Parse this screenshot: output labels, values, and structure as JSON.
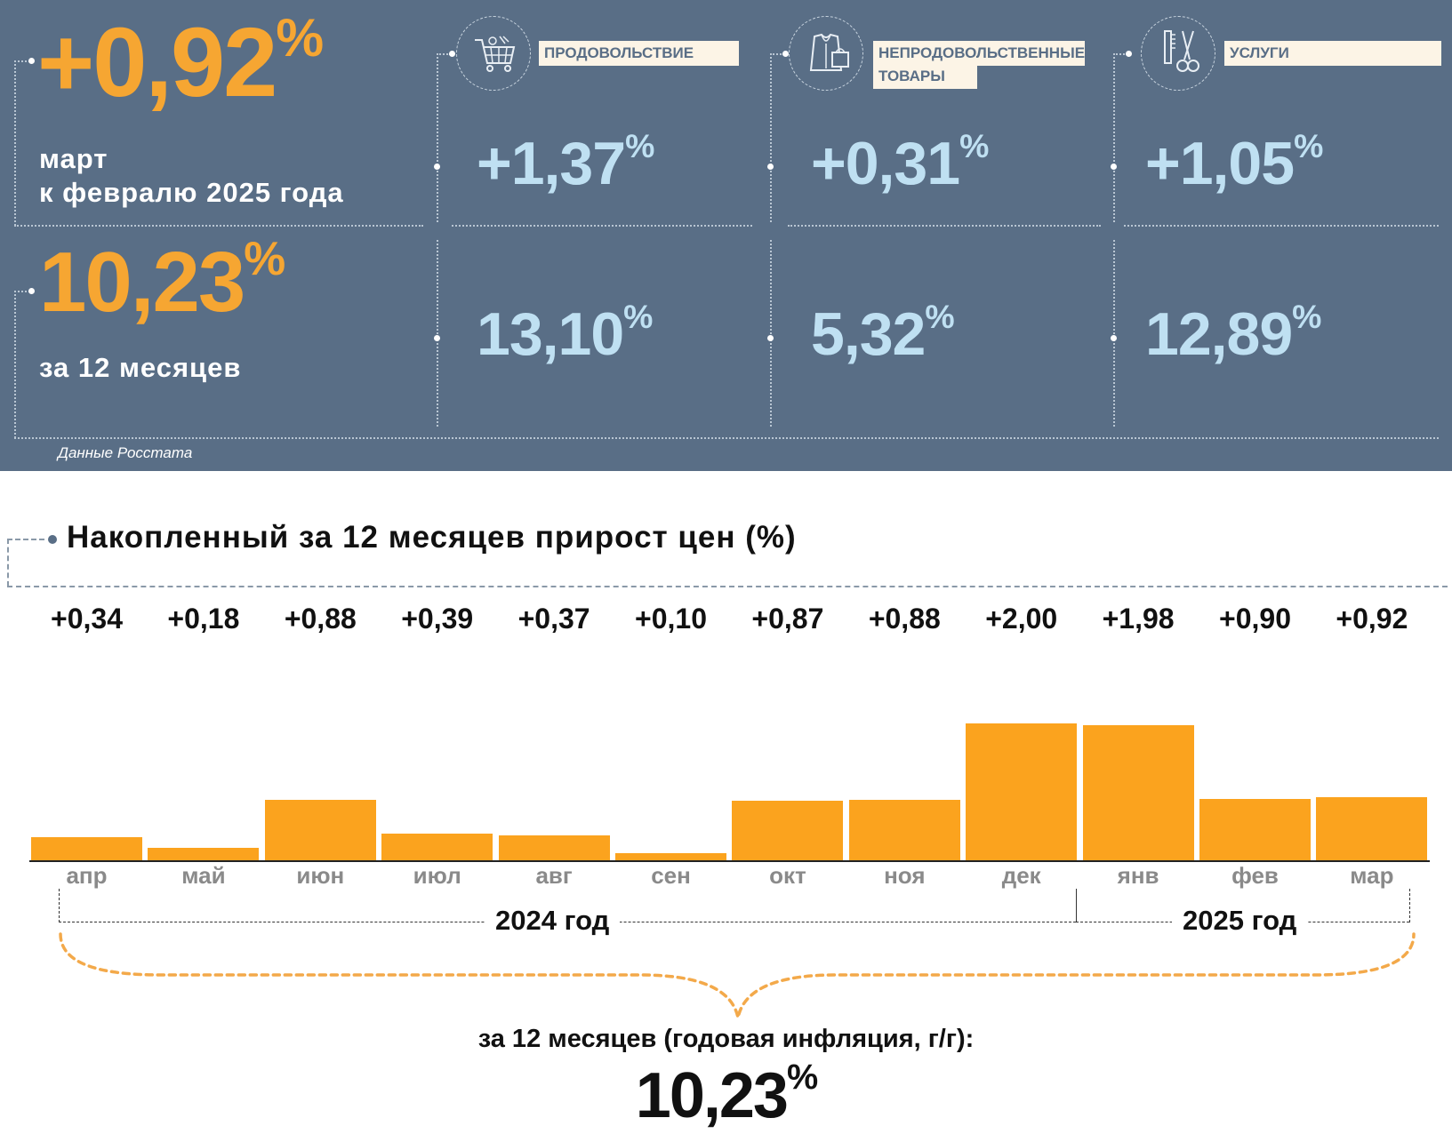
{
  "summary": {
    "monthly": {
      "value": "+0,92",
      "unit": "%",
      "label_line1": "март",
      "label_line2": "к февралю 2025 года"
    },
    "annual": {
      "value": "10,23",
      "unit": "%",
      "label": "за 12 месяцев"
    },
    "source": "Данные Росстата"
  },
  "categories": [
    {
      "name": "ПРОДОВОЛЬСТВИЕ",
      "icon": "shopping-cart-icon",
      "monthly": "+1,37",
      "annual": "13,10",
      "unit": "%"
    },
    {
      "name_line1": "НЕПРОДОВОЛЬСТВЕННЫЕ",
      "name_line2": "ТОВАРЫ",
      "icon": "clothing-bag-icon",
      "monthly": "+0,31",
      "annual": "5,32",
      "unit": "%"
    },
    {
      "name": "УСЛУГИ",
      "icon": "scissors-comb-icon",
      "monthly": "+1,05",
      "annual": "12,89",
      "unit": "%"
    }
  ],
  "colors": {
    "panel": "#596e86",
    "orange": "#f6a632",
    "light_blue": "#bfe0f2",
    "bar": "#fba31e"
  },
  "chart_data": {
    "type": "bar",
    "title": "Накопленный за 12 месяцев прирост цен (%)",
    "categories": [
      "апр",
      "май",
      "июн",
      "июл",
      "авг",
      "сен",
      "окт",
      "ноя",
      "дек",
      "янв",
      "фев",
      "мар"
    ],
    "values": [
      0.34,
      0.18,
      0.88,
      0.39,
      0.37,
      0.1,
      0.87,
      0.88,
      2.0,
      1.98,
      0.9,
      0.92
    ],
    "value_labels": [
      "+0,34",
      "+0,18",
      "+0,88",
      "+0,39",
      "+0,37",
      "+0,10",
      "+0,87",
      "+0,88",
      "+2,00",
      "+1,98",
      "+0,90",
      "+0,92"
    ],
    "year_groups": [
      {
        "label": "2024 год",
        "months": [
          "апр",
          "май",
          "июн",
          "июл",
          "авг",
          "сен",
          "окт",
          "ноя",
          "дек"
        ]
      },
      {
        "label": "2025 год",
        "months": [
          "янв",
          "фев",
          "мар"
        ]
      }
    ],
    "summary_label": "за 12 месяцев (годовая инфляция, г/г):",
    "summary_value": "10,23",
    "summary_unit": "%",
    "grid": false
  }
}
